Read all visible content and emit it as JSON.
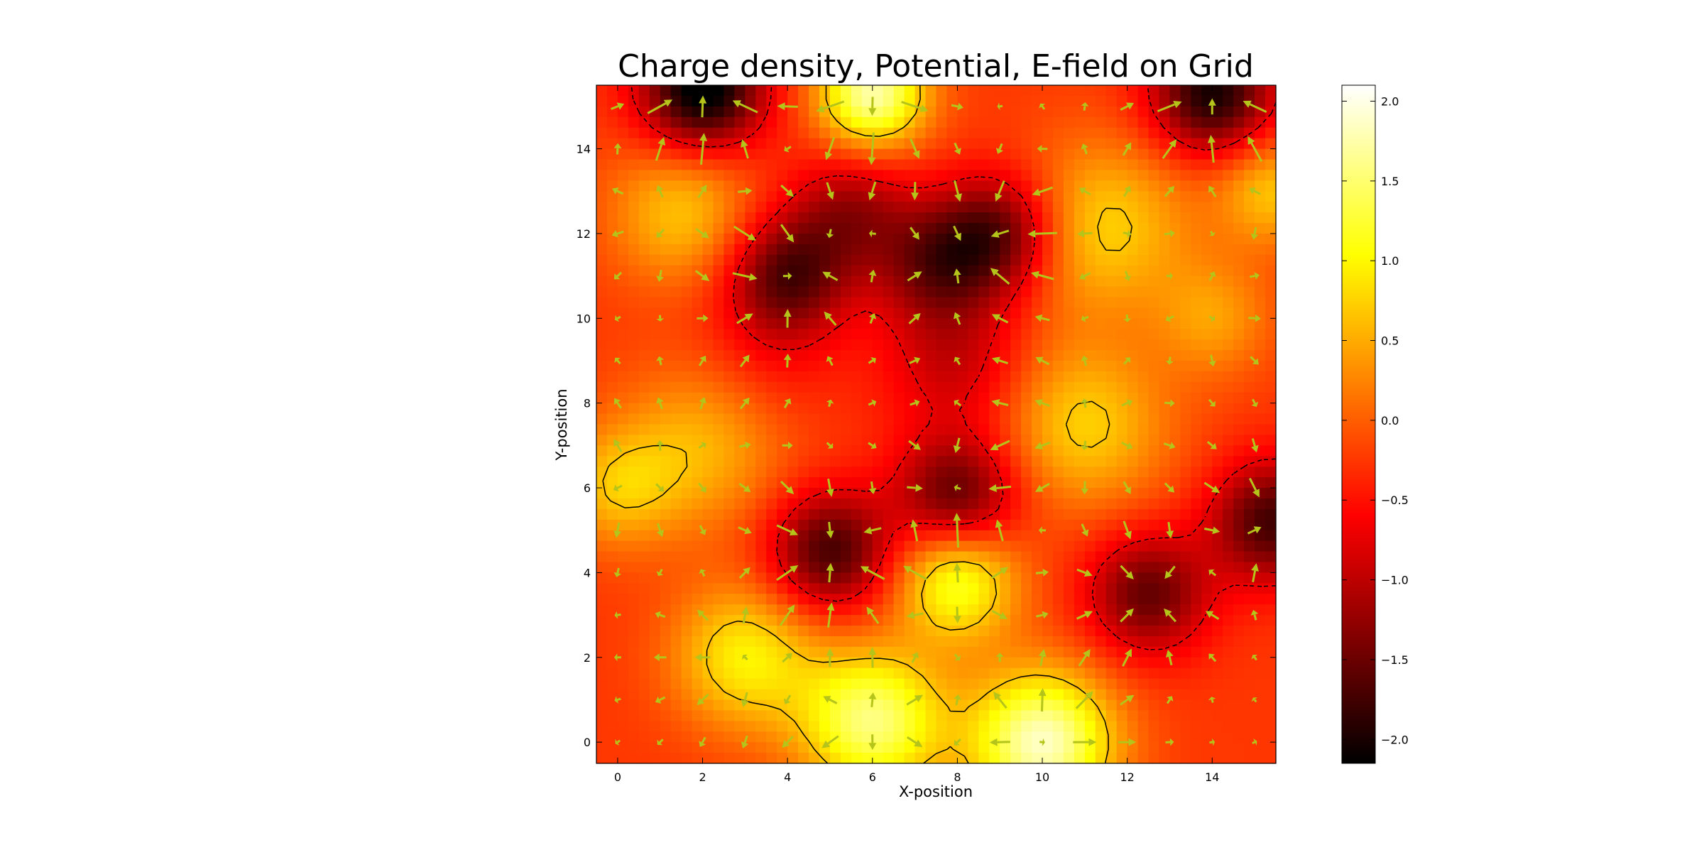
{
  "chart_data": {
    "type": "heatmap",
    "title": "Charge density, Potential, E-field on Grid",
    "xlabel": "X-position",
    "ylabel": "Y-position",
    "xlim": [
      -0.5,
      15.5
    ],
    "ylim": [
      -0.5,
      15.5
    ],
    "x_ticks": [
      0,
      2,
      4,
      6,
      8,
      10,
      12,
      14
    ],
    "y_ticks": [
      0,
      2,
      4,
      6,
      8,
      10,
      12,
      14
    ],
    "x_tick_labels": [
      "0",
      "2",
      "4",
      "6",
      "8",
      "10",
      "12",
      "14"
    ],
    "y_tick_labels": [
      "0",
      "2",
      "4",
      "6",
      "8",
      "10",
      "12",
      "14"
    ],
    "colormap": "hot",
    "colorbar": {
      "vmin": -2.15,
      "vmax": 2.1,
      "ticks": [
        2.0,
        1.5,
        1.0,
        0.5,
        0.0,
        -0.5,
        -1.0,
        -1.5,
        -2.0
      ],
      "tick_labels": [
        "2.0",
        "1.5",
        "1.0",
        "0.5",
        "0.0",
        "−0.5",
        "−1.0",
        "−1.5",
        "−2.0"
      ]
    },
    "contour_color": "#000000",
    "quiver_color": "#b5c41a",
    "grid": false
  }
}
